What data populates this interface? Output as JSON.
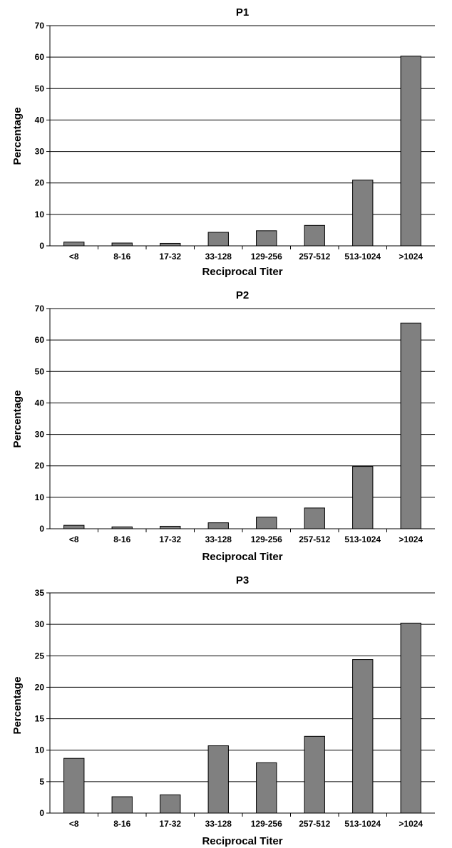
{
  "chart_data": [
    {
      "type": "bar",
      "title": "P1",
      "xlabel": "Reciprocal Titer",
      "ylabel": "Percentage",
      "categories": [
        "<8",
        "8-16",
        "17-32",
        "33-128",
        "129-256",
        "257-512",
        "513-1024",
        ">1024"
      ],
      "values": [
        1.2,
        0.9,
        0.8,
        4.3,
        4.8,
        6.5,
        20.9,
        60.3
      ],
      "ylim": [
        0,
        70
      ],
      "yticks": [
        0,
        10,
        20,
        30,
        40,
        50,
        60,
        70
      ],
      "grid": true,
      "bar_color": "#808080"
    },
    {
      "type": "bar",
      "title": "P2",
      "xlabel": "Reciprocal Titer",
      "ylabel": "Percentage",
      "categories": [
        "<8",
        "8-16",
        "17-32",
        "33-128",
        "129-256",
        "257-512",
        "513-1024",
        ">1024"
      ],
      "values": [
        1.1,
        0.6,
        0.8,
        1.9,
        3.7,
        6.6,
        19.8,
        65.4
      ],
      "ylim": [
        0,
        70
      ],
      "yticks": [
        0,
        10,
        20,
        30,
        40,
        50,
        60,
        70
      ],
      "grid": true,
      "bar_color": "#808080"
    },
    {
      "type": "bar",
      "title": "P3",
      "xlabel": "Reciprocal Titer",
      "ylabel": "Percentage",
      "categories": [
        "<8",
        "8-16",
        "17-32",
        "33-128",
        "129-256",
        "257-512",
        "513-1024",
        ">1024"
      ],
      "values": [
        8.7,
        2.6,
        2.9,
        10.7,
        8.0,
        12.2,
        24.4,
        30.2
      ],
      "ylim": [
        0,
        35
      ],
      "yticks": [
        0,
        5,
        10,
        15,
        20,
        25,
        30,
        35
      ],
      "grid": true,
      "bar_color": "#808080"
    }
  ]
}
